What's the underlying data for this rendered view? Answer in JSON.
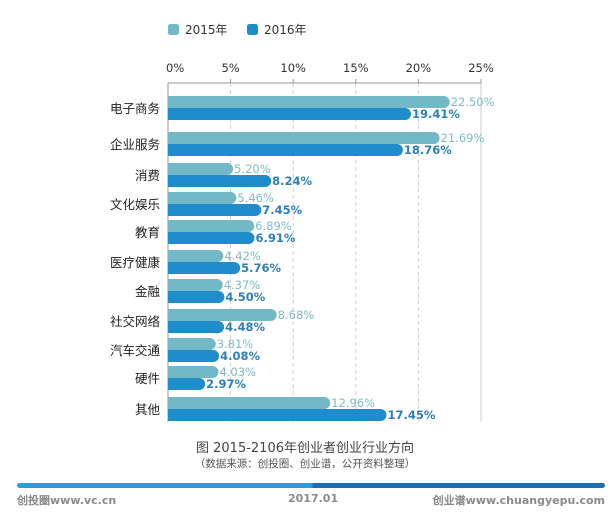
{
  "chart_data": {
    "type": "bar",
    "orientation": "horizontal",
    "title": "图 2015-2106年创业者创业行业方向",
    "subtitle": "（数据来源：创投圈、创业谱，公开资料整理）",
    "xlabel": "",
    "ylabel": "",
    "xlim": [
      0,
      25
    ],
    "x_ticks": [
      "0%",
      "5%",
      "10%",
      "15%",
      "20%",
      "25%"
    ],
    "x_tick_values": [
      0,
      5,
      10,
      15,
      20,
      25
    ],
    "grid": true,
    "legend_position": "top",
    "categories": [
      "电子商务",
      "企业服务",
      "消费",
      "文化娱乐",
      "教育",
      "医疗健康",
      "金融",
      "社交网络",
      "汽车交通",
      "硬件",
      "其他"
    ],
    "series": [
      {
        "name": "2015年",
        "color": "#72b8c6",
        "values": [
          22.5,
          21.69,
          5.2,
          5.46,
          6.89,
          4.42,
          4.37,
          8.68,
          3.81,
          4.03,
          12.96
        ],
        "labels": [
          "22.50%",
          "21.69%",
          "5.20%",
          "5.46%",
          "6.89%",
          "4.42%",
          "4.37%",
          "8.68%",
          "3.81%",
          "4.03%",
          "12.96%"
        ]
      },
      {
        "name": "2016年",
        "color": "#1f8ccb",
        "values": [
          19.41,
          18.76,
          8.24,
          7.45,
          6.91,
          5.76,
          4.5,
          4.48,
          4.08,
          2.97,
          17.45
        ],
        "labels": [
          "19.41%",
          "18.76%",
          "8.24%",
          "7.45%",
          "6.91%",
          "5.76%",
          "4.50%",
          "4.48%",
          "4.08%",
          "2.97%",
          "17.45%"
        ]
      }
    ]
  },
  "footer": {
    "left": "创投圈www.vc.cn",
    "date": "2017.01",
    "right": "创业谱www.chuangyepu.com"
  }
}
